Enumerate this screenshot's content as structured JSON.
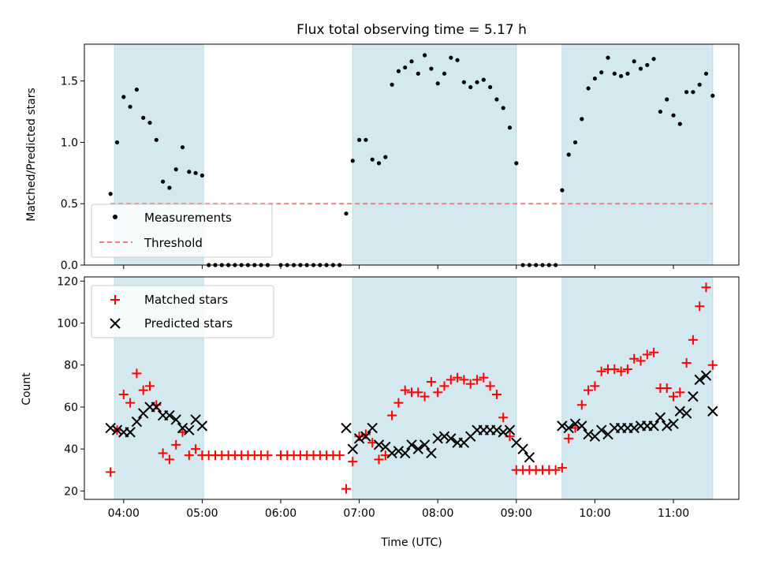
{
  "chart_data": [
    {
      "type": "scatter",
      "title": "Flux total observing time = 5.17 h",
      "xlabel": "",
      "ylabel": "Matched/Predicted stars",
      "xlim": [
        "03:30",
        "11:50"
      ],
      "ylim": [
        0,
        1.8
      ],
      "yticks": [
        "0.0",
        "0.5",
        "1.0",
        "1.5"
      ],
      "observing_windows": [
        [
          "03:53",
          "05:01"
        ],
        [
          "06:55",
          "09:00"
        ],
        [
          "09:35",
          "11:30"
        ]
      ],
      "legend_position": "lower-left",
      "series": [
        {
          "name": "Measurements",
          "marker": "dot",
          "color": "#000000",
          "points": [
            [
              "03:50",
              0.58
            ],
            [
              "03:55",
              1.0
            ],
            [
              "04:00",
              1.37
            ],
            [
              "04:05",
              1.29
            ],
            [
              "04:10",
              1.43
            ],
            [
              "04:15",
              1.2
            ],
            [
              "04:20",
              1.16
            ],
            [
              "04:25",
              1.02
            ],
            [
              "04:30",
              0.68
            ],
            [
              "04:35",
              0.63
            ],
            [
              "04:40",
              0.78
            ],
            [
              "04:45",
              0.96
            ],
            [
              "04:50",
              0.76
            ],
            [
              "04:55",
              0.75
            ],
            [
              "05:00",
              0.73
            ],
            [
              "05:05",
              0.0
            ],
            [
              "05:10",
              0.0
            ],
            [
              "05:15",
              0.0
            ],
            [
              "05:20",
              0.0
            ],
            [
              "05:25",
              0.0
            ],
            [
              "05:30",
              0.0
            ],
            [
              "05:35",
              0.0
            ],
            [
              "05:40",
              0.0
            ],
            [
              "05:45",
              0.0
            ],
            [
              "05:50",
              0.0
            ],
            [
              "06:00",
              0.0
            ],
            [
              "06:05",
              0.0
            ],
            [
              "06:10",
              0.0
            ],
            [
              "06:15",
              0.0
            ],
            [
              "06:20",
              0.0
            ],
            [
              "06:25",
              0.0
            ],
            [
              "06:30",
              0.0
            ],
            [
              "06:35",
              0.0
            ],
            [
              "06:40",
              0.0
            ],
            [
              "06:45",
              0.0
            ],
            [
              "06:50",
              0.42
            ],
            [
              "06:55",
              0.85
            ],
            [
              "07:00",
              1.02
            ],
            [
              "07:05",
              1.02
            ],
            [
              "07:10",
              0.86
            ],
            [
              "07:15",
              0.83
            ],
            [
              "07:20",
              0.88
            ],
            [
              "07:25",
              1.47
            ],
            [
              "07:30",
              1.58
            ],
            [
              "07:35",
              1.61
            ],
            [
              "07:40",
              1.66
            ],
            [
              "07:45",
              1.56
            ],
            [
              "07:50",
              1.71
            ],
            [
              "07:55",
              1.6
            ],
            [
              "08:00",
              1.48
            ],
            [
              "08:05",
              1.56
            ],
            [
              "08:10",
              1.69
            ],
            [
              "08:15",
              1.67
            ],
            [
              "08:20",
              1.49
            ],
            [
              "08:25",
              1.45
            ],
            [
              "08:30",
              1.49
            ],
            [
              "08:35",
              1.51
            ],
            [
              "08:40",
              1.45
            ],
            [
              "08:45",
              1.35
            ],
            [
              "08:50",
              1.28
            ],
            [
              "08:55",
              1.12
            ],
            [
              "09:00",
              0.83
            ],
            [
              "09:05",
              0.0
            ],
            [
              "09:10",
              0.0
            ],
            [
              "09:15",
              0.0
            ],
            [
              "09:20",
              0.0
            ],
            [
              "09:25",
              0.0
            ],
            [
              "09:30",
              0.0
            ],
            [
              "09:35",
              0.61
            ],
            [
              "09:40",
              0.9
            ],
            [
              "09:45",
              1.0
            ],
            [
              "09:50",
              1.19
            ],
            [
              "09:55",
              1.44
            ],
            [
              "10:00",
              1.52
            ],
            [
              "10:05",
              1.57
            ],
            [
              "10:10",
              1.69
            ],
            [
              "10:15",
              1.56
            ],
            [
              "10:20",
              1.54
            ],
            [
              "10:25",
              1.56
            ],
            [
              "10:30",
              1.66
            ],
            [
              "10:35",
              1.6
            ],
            [
              "10:40",
              1.63
            ],
            [
              "10:45",
              1.68
            ],
            [
              "10:50",
              1.25
            ],
            [
              "10:55",
              1.35
            ],
            [
              "11:00",
              1.22
            ],
            [
              "11:05",
              1.15
            ],
            [
              "11:10",
              1.41
            ],
            [
              "11:15",
              1.41
            ],
            [
              "11:20",
              1.47
            ],
            [
              "11:25",
              1.56
            ],
            [
              "11:30",
              1.38
            ]
          ]
        },
        {
          "name": "Threshold",
          "marker": "dashed-line",
          "color": "#f08080",
          "y": 0.5,
          "x_range": [
            "03:50",
            "11:30"
          ]
        }
      ]
    },
    {
      "type": "scatter",
      "title": "",
      "xlabel": "Time (UTC)",
      "ylabel": "Count",
      "xlim": [
        "03:30",
        "11:50"
      ],
      "ylim": [
        16,
        122
      ],
      "yticks": [
        "20",
        "40",
        "60",
        "80",
        "100",
        "120"
      ],
      "xticks": [
        "04:00",
        "05:00",
        "06:00",
        "07:00",
        "08:00",
        "09:00",
        "10:00",
        "11:00"
      ],
      "observing_windows": [
        [
          "03:53",
          "05:01"
        ],
        [
          "06:55",
          "09:00"
        ],
        [
          "09:35",
          "11:30"
        ]
      ],
      "legend_position": "top-left",
      "series": [
        {
          "name": "Matched stars",
          "marker": "plus",
          "color": "#ff0000",
          "points": [
            [
              "03:50",
              29
            ],
            [
              "03:55",
              49
            ],
            [
              "04:00",
              66
            ],
            [
              "04:05",
              62
            ],
            [
              "04:10",
              76
            ],
            [
              "04:15",
              68
            ],
            [
              "04:20",
              70
            ],
            [
              "04:25",
              61
            ],
            [
              "04:30",
              38
            ],
            [
              "04:35",
              35
            ],
            [
              "04:40",
              42
            ],
            [
              "04:45",
              48
            ],
            [
              "04:50",
              37
            ],
            [
              "04:55",
              40
            ],
            [
              "05:00",
              37
            ],
            [
              "05:05",
              37
            ],
            [
              "05:10",
              37
            ],
            [
              "05:15",
              37
            ],
            [
              "05:20",
              37
            ],
            [
              "05:25",
              37
            ],
            [
              "05:30",
              37
            ],
            [
              "05:35",
              37
            ],
            [
              "05:40",
              37
            ],
            [
              "05:45",
              37
            ],
            [
              "05:50",
              37
            ],
            [
              "06:00",
              37
            ],
            [
              "06:05",
              37
            ],
            [
              "06:10",
              37
            ],
            [
              "06:15",
              37
            ],
            [
              "06:20",
              37
            ],
            [
              "06:25",
              37
            ],
            [
              "06:30",
              37
            ],
            [
              "06:35",
              37
            ],
            [
              "06:40",
              37
            ],
            [
              "06:45",
              37
            ],
            [
              "06:50",
              21
            ],
            [
              "06:55",
              34
            ],
            [
              "07:00",
              46
            ],
            [
              "07:05",
              47
            ],
            [
              "07:10",
              43
            ],
            [
              "07:15",
              35
            ],
            [
              "07:20",
              37
            ],
            [
              "07:25",
              56
            ],
            [
              "07:30",
              62
            ],
            [
              "07:35",
              68
            ],
            [
              "07:40",
              67
            ],
            [
              "07:45",
              67
            ],
            [
              "07:50",
              65
            ],
            [
              "07:55",
              72
            ],
            [
              "08:00",
              67
            ],
            [
              "08:05",
              70
            ],
            [
              "08:10",
              73
            ],
            [
              "08:15",
              74
            ],
            [
              "08:20",
              73
            ],
            [
              "08:25",
              71
            ],
            [
              "08:30",
              73
            ],
            [
              "08:35",
              74
            ],
            [
              "08:40",
              70
            ],
            [
              "08:45",
              66
            ],
            [
              "08:50",
              55
            ],
            [
              "08:55",
              46
            ],
            [
              "09:00",
              30
            ],
            [
              "09:05",
              30
            ],
            [
              "09:10",
              30
            ],
            [
              "09:15",
              30
            ],
            [
              "09:20",
              30
            ],
            [
              "09:25",
              30
            ],
            [
              "09:30",
              30
            ],
            [
              "09:35",
              31
            ],
            [
              "09:40",
              45
            ],
            [
              "09:45",
              50
            ],
            [
              "09:50",
              61
            ],
            [
              "09:55",
              68
            ],
            [
              "10:00",
              70
            ],
            [
              "10:05",
              77
            ],
            [
              "10:10",
              78
            ],
            [
              "10:15",
              78
            ],
            [
              "10:20",
              77
            ],
            [
              "10:25",
              78
            ],
            [
              "10:30",
              83
            ],
            [
              "10:35",
              82
            ],
            [
              "10:40",
              85
            ],
            [
              "10:45",
              86
            ],
            [
              "10:50",
              69
            ],
            [
              "10:55",
              69
            ],
            [
              "11:00",
              65
            ],
            [
              "11:05",
              67
            ],
            [
              "11:10",
              81
            ],
            [
              "11:15",
              92
            ],
            [
              "11:20",
              108
            ],
            [
              "11:25",
              117
            ],
            [
              "11:30",
              80
            ]
          ]
        },
        {
          "name": "Predicted stars",
          "marker": "x",
          "color": "#000000",
          "points": [
            [
              "03:50",
              50
            ],
            [
              "03:55",
              49
            ],
            [
              "04:00",
              48
            ],
            [
              "04:05",
              48
            ],
            [
              "04:10",
              53
            ],
            [
              "04:15",
              57
            ],
            [
              "04:20",
              60
            ],
            [
              "04:25",
              60
            ],
            [
              "04:30",
              56
            ],
            [
              "04:35",
              56
            ],
            [
              "04:40",
              54
            ],
            [
              "04:45",
              50
            ],
            [
              "04:50",
              49
            ],
            [
              "04:55",
              54
            ],
            [
              "05:00",
              51
            ],
            [
              "06:50",
              50
            ],
            [
              "06:55",
              40
            ],
            [
              "07:00",
              45
            ],
            [
              "07:05",
              46
            ],
            [
              "07:10",
              50
            ],
            [
              "07:15",
              42
            ],
            [
              "07:20",
              41
            ],
            [
              "07:25",
              38
            ],
            [
              "07:30",
              39
            ],
            [
              "07:35",
              38
            ],
            [
              "07:40",
              42
            ],
            [
              "07:45",
              40
            ],
            [
              "07:50",
              42
            ],
            [
              "07:55",
              38
            ],
            [
              "08:00",
              45
            ],
            [
              "08:05",
              46
            ],
            [
              "08:10",
              45
            ],
            [
              "08:15",
              43
            ],
            [
              "08:20",
              43
            ],
            [
              "08:25",
              46
            ],
            [
              "08:30",
              49
            ],
            [
              "08:35",
              49
            ],
            [
              "08:40",
              49
            ],
            [
              "08:45",
              49
            ],
            [
              "08:50",
              48
            ],
            [
              "08:55",
              49
            ],
            [
              "09:00",
              43
            ],
            [
              "09:05",
              40
            ],
            [
              "09:10",
              36
            ],
            [
              "09:35",
              51
            ],
            [
              "09:40",
              50
            ],
            [
              "09:45",
              52
            ],
            [
              "09:50",
              51
            ],
            [
              "09:55",
              47
            ],
            [
              "10:00",
              46
            ],
            [
              "10:05",
              49
            ],
            [
              "10:10",
              47
            ],
            [
              "10:15",
              50
            ],
            [
              "10:20",
              50
            ],
            [
              "10:25",
              50
            ],
            [
              "10:30",
              50
            ],
            [
              "10:35",
              51
            ],
            [
              "10:40",
              51
            ],
            [
              "10:45",
              51
            ],
            [
              "10:50",
              55
            ],
            [
              "10:55",
              51
            ],
            [
              "11:00",
              52
            ],
            [
              "11:05",
              58
            ],
            [
              "11:10",
              57
            ],
            [
              "11:15",
              65
            ],
            [
              "11:20",
              73
            ],
            [
              "11:25",
              75
            ],
            [
              "11:30",
              58
            ]
          ]
        }
      ]
    }
  ],
  "colors": {
    "window_fill": "#d3e9ef",
    "window_edge": "#b8dde6",
    "threshold": "#f08080",
    "matched": "#ff0000",
    "predicted": "#000000"
  }
}
